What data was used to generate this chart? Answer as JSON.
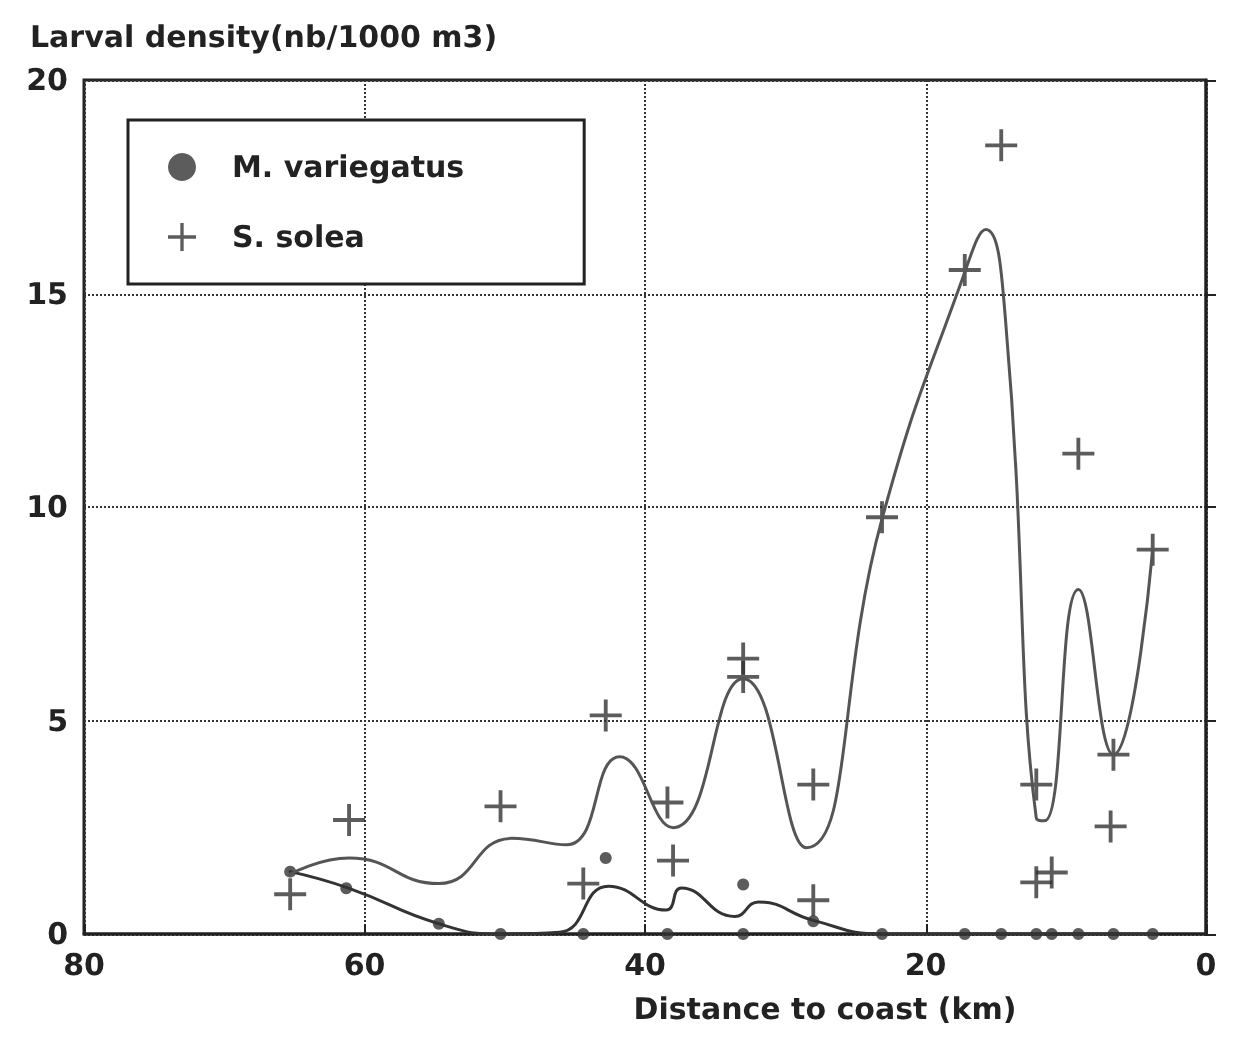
{
  "chart_data": {
    "type": "scatter",
    "xlabel": "Distance to coast (km)",
    "ylabel": "Larval density(nb/1000 m3)",
    "xlim": [
      80,
      0
    ],
    "xticks": [
      80,
      60,
      40,
      20,
      0
    ],
    "ylim": [
      0,
      20
    ],
    "yticks": [
      0,
      5,
      10,
      15,
      20
    ],
    "grid": true,
    "legend": "top left",
    "series": [
      {
        "name": "M. variegatus",
        "marker": "circle",
        "color": "#333333",
        "x": [
          65.3,
          61.3,
          54.7,
          50.3,
          44.4,
          42.8,
          38.4,
          33.0,
          33.0,
          28.0,
          23.1,
          17.2,
          14.6,
          12.1,
          11.0,
          9.1,
          6.6,
          3.8
        ],
        "values": [
          1.46,
          1.07,
          0.24,
          0,
          0,
          1.78,
          0,
          0,
          1.16,
          0.3,
          0,
          0,
          0,
          0,
          0,
          0,
          0,
          0
        ]
      },
      {
        "type": "line",
        "marker": "none",
        "line_style": "solid",
        "color": "#333333",
        "x": [
          65.3,
          61.1,
          54.7,
          50.3,
          46.1,
          42.6,
          38.5,
          37.4,
          33.6,
          31.9,
          28.0,
          23.1,
          3.8
        ],
        "values": [
          1.46,
          1.07,
          0.24,
          0,
          0.04,
          1.12,
          0.56,
          1.08,
          0.41,
          0.75,
          0.32,
          0,
          0
        ]
      },
      {
        "name": "S. solea",
        "marker": "cross",
        "color": "#333333",
        "x": [
          65.3,
          61.1,
          50.3,
          44.4,
          42.8,
          38.4,
          38.0,
          33.0,
          33.0,
          28.0,
          28.0,
          23.1,
          17.2,
          14.6,
          12.1,
          12.1,
          11.0,
          9.1,
          6.6,
          6.8,
          3.8
        ],
        "values": [
          0.93,
          2.67,
          2.99,
          1.18,
          5.12,
          3.08,
          1.72,
          6.45,
          6.02,
          3.5,
          0.79,
          9.76,
          15.55,
          18.47,
          3.5,
          1.21,
          1.44,
          11.25,
          4.2,
          2.52,
          9.0
        ]
      },
      {
        "type": "line",
        "marker": "none",
        "line_style": "solid",
        "color": "#555555",
        "x": [
          65.3,
          61.1,
          54.7,
          49.5,
          45.6,
          41.8,
          38.0,
          33.0,
          28.5,
          23.1,
          17.2,
          15.7,
          14.3,
          12.1,
          11.5,
          9.1,
          6.6,
          3.8
        ],
        "values": [
          1.4,
          1.78,
          1.18,
          2.24,
          2.09,
          4.15,
          2.49,
          5.98,
          2.02,
          9.72,
          15.5,
          16.5,
          14.4,
          2.71,
          2.65,
          8.07,
          4.2,
          9.0
        ]
      }
    ]
  }
}
